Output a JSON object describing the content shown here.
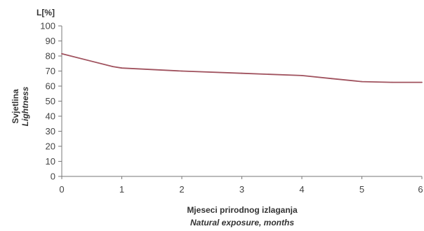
{
  "chart_data": {
    "type": "line",
    "top_label": "L[%]",
    "ylabel": "Svjetlina",
    "ylabel_en": "Lightness",
    "xlabel": "Mjeseci prirodnog izlaganja",
    "xlabel_en": "Natural exposure, months",
    "xlim": [
      0,
      6
    ],
    "ylim": [
      0,
      100
    ],
    "x_ticks": [
      "0",
      "1",
      "2",
      "3",
      "4",
      "5",
      "6"
    ],
    "y_ticks": [
      "0",
      "10",
      "20",
      "30",
      "40",
      "50",
      "60",
      "70",
      "80",
      "90",
      "100"
    ],
    "grid": false,
    "series": [
      {
        "color": "#a0525e",
        "x": [
          0,
          0.85,
          1,
          2,
          3,
          4,
          4.5,
          5,
          5.5,
          6
        ],
        "y": [
          81.5,
          73,
          72,
          70,
          68.5,
          67,
          65,
          63,
          62.5,
          62.5
        ]
      }
    ]
  }
}
